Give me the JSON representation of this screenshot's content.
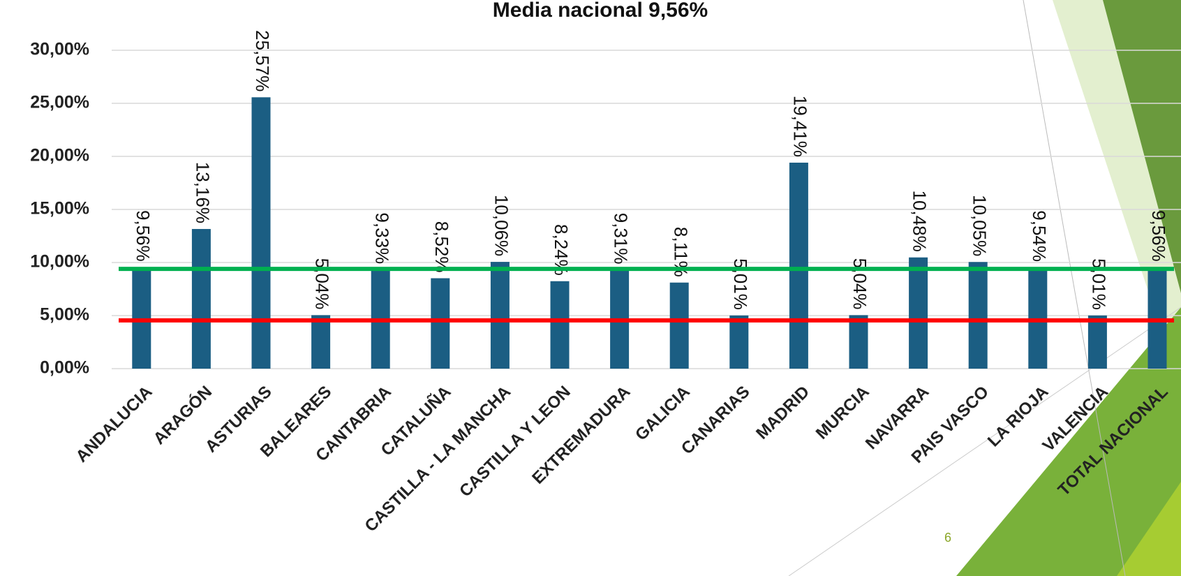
{
  "chart_data": {
    "type": "bar",
    "title": "Media nacional 9,56%",
    "categories": [
      "ANDALUCIA",
      "ARAGÓN",
      "ASTURIAS",
      "BALEARES",
      "CANTABRIA",
      "CATALUÑA",
      "CASTILLA - LA MANCHA",
      "CASTILLA Y LEON",
      "EXTREMADURA",
      "GALICIA",
      "CANARIAS",
      "MADRID",
      "MURCIA",
      "NAVARRA",
      "PAIS VASCO",
      "LA RIOJA",
      "VALENCIA",
      "TOTAL NACIONAL"
    ],
    "values": [
      9.56,
      13.16,
      25.57,
      5.04,
      9.33,
      8.52,
      10.06,
      8.24,
      9.31,
      8.11,
      5.01,
      19.41,
      5.04,
      10.48,
      10.05,
      9.54,
      5.01,
      9.56
    ],
    "value_labels": [
      "9,56%",
      "13,16%",
      "25,57%",
      "5,04%",
      "9,33%",
      "8,52%",
      "10,06%",
      "8,24%",
      "9,31%",
      "8,11%",
      "5,01%",
      "19,41%",
      "5,04%",
      "10,48%",
      "10,05%",
      "9,54%",
      "5,01%",
      "9,56%"
    ],
    "color": "#1b5e83",
    "ylim": [
      0,
      30
    ],
    "yticks": [
      {
        "value": 0,
        "label": "0,00%"
      },
      {
        "value": 5,
        "label": "5,00%"
      },
      {
        "value": 10,
        "label": "10,00%"
      },
      {
        "value": 15,
        "label": "15,00%"
      },
      {
        "value": 20,
        "label": "20,00%"
      },
      {
        "value": 25,
        "label": "25,00%"
      },
      {
        "value": 30,
        "label": "30,00%"
      }
    ],
    "grid": true,
    "reference_lines": [
      {
        "value": 9.4,
        "color": "#00b050"
      },
      {
        "value": 4.55,
        "color": "#ff0000"
      }
    ]
  },
  "page_number": "6"
}
